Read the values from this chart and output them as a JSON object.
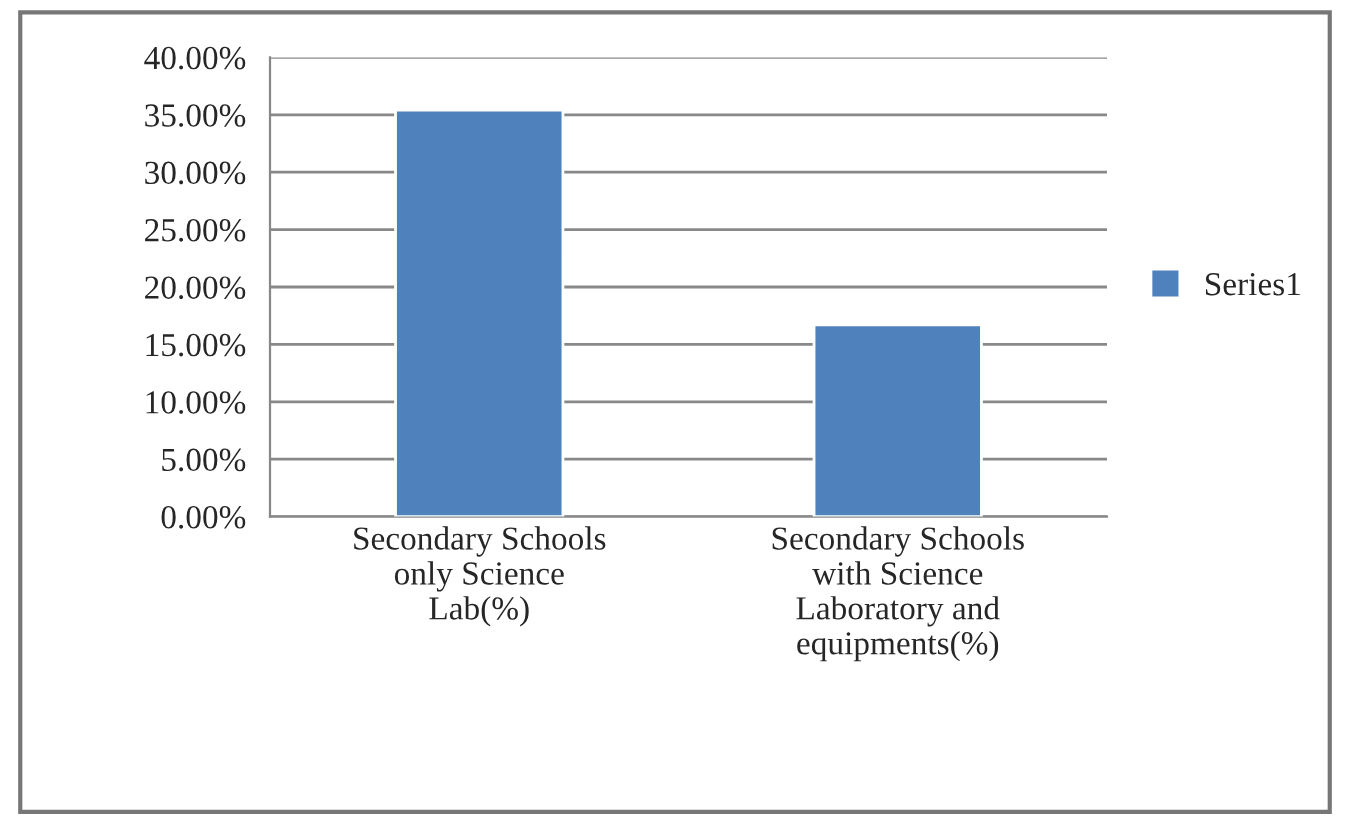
{
  "chart_data": {
    "type": "bar",
    "categories": [
      "Secondary Schools\nonly Science\nLab(%)",
      "Secondary Schools\nwith Science\nLaboratory and\nequipments(%)"
    ],
    "series": [
      {
        "name": "Series1",
        "color": "#4f81bd",
        "values": [
          35.4,
          16.7
        ]
      }
    ],
    "ylim": [
      0,
      40
    ],
    "yticks": [
      {
        "value": 0,
        "label": "0.00%"
      },
      {
        "value": 5,
        "label": "5.00%"
      },
      {
        "value": 10,
        "label": "10.00%"
      },
      {
        "value": 15,
        "label": "15.00%"
      },
      {
        "value": 20,
        "label": "20.00%"
      },
      {
        "value": 25,
        "label": "25.00%"
      },
      {
        "value": 30,
        "label": "30.00%"
      },
      {
        "value": 35,
        "label": "35.00%"
      },
      {
        "value": 40,
        "label": "40.00%"
      }
    ],
    "grid": "y",
    "legend": "right"
  }
}
